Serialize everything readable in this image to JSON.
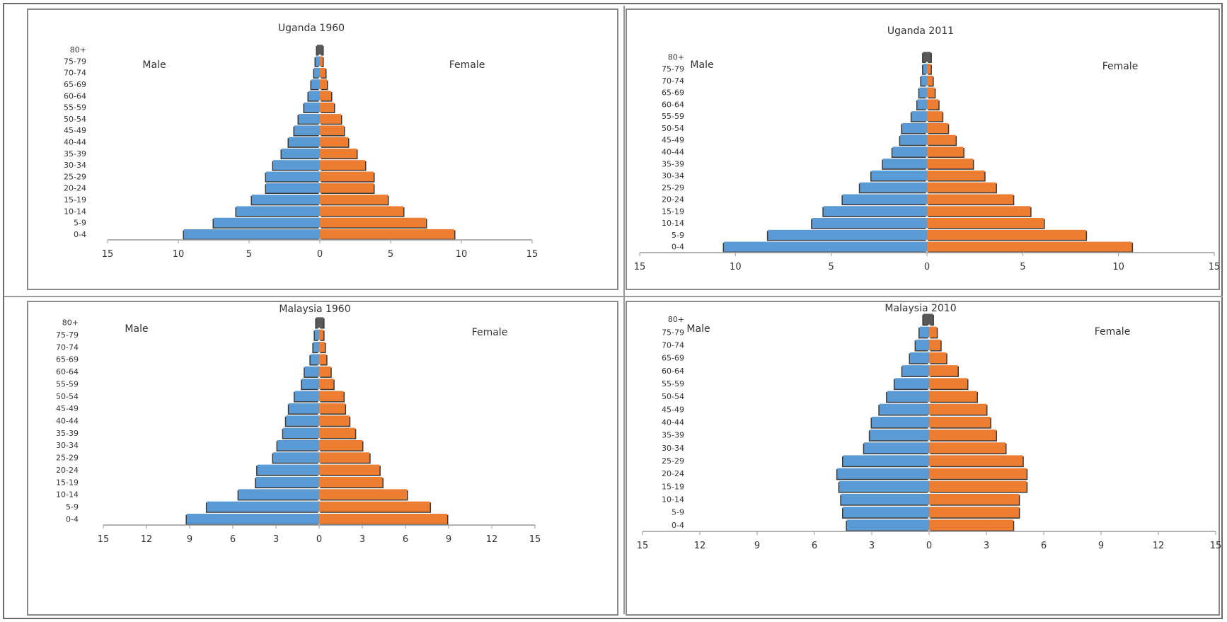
{
  "chart_data": [
    {
      "type": "bar",
      "title": "Uganda 1960",
      "left_label": "Male",
      "right_label": "Female",
      "categories": [
        "0-4",
        "5-9",
        "10-14",
        "15-19",
        "20-24",
        "25-29",
        "30-34",
        "35-39",
        "40-44",
        "45-49",
        "50-54",
        "55-59",
        "60-64",
        "65-69",
        "70-74",
        "75-79",
        "80+"
      ],
      "series": [
        {
          "name": "Male",
          "values": [
            9.6,
            7.5,
            5.9,
            4.8,
            3.8,
            3.8,
            3.3,
            2.7,
            2.2,
            1.8,
            1.5,
            1.1,
            0.8,
            0.6,
            0.4,
            0.3,
            0.2
          ]
        },
        {
          "name": "Female",
          "values": [
            9.5,
            7.5,
            5.9,
            4.8,
            3.8,
            3.8,
            3.2,
            2.6,
            2.0,
            1.7,
            1.5,
            1.0,
            0.8,
            0.5,
            0.4,
            0.2,
            0.2
          ]
        }
      ],
      "xlim": [
        -15,
        15
      ],
      "ticks": [
        -15,
        -10,
        -5,
        0,
        5,
        10,
        15
      ],
      "tick_labels": [
        "15",
        "10",
        "5",
        "0",
        "5",
        "10",
        "15"
      ],
      "colors": {
        "male": "#5b9bd5",
        "female": "#ed7d31",
        "top": "#595959"
      }
    },
    {
      "type": "bar",
      "title": "Uganda 2011",
      "left_label": "Male",
      "right_label": "Female",
      "categories": [
        "0-4",
        "5-9",
        "10-14",
        "15-19",
        "20-24",
        "25-29",
        "30-34",
        "35-39",
        "40-44",
        "45-49",
        "50-54",
        "55-59",
        "60-64",
        "65-69",
        "70-74",
        "75-79",
        "80+"
      ],
      "series": [
        {
          "name": "Male",
          "values": [
            10.6,
            8.3,
            6.0,
            5.4,
            4.4,
            3.5,
            2.9,
            2.3,
            1.8,
            1.4,
            1.3,
            0.8,
            0.5,
            0.4,
            0.3,
            0.2,
            0.2
          ]
        },
        {
          "name": "Female",
          "values": [
            10.7,
            8.3,
            6.1,
            5.4,
            4.5,
            3.6,
            3.0,
            2.4,
            1.9,
            1.5,
            1.1,
            0.8,
            0.6,
            0.4,
            0.3,
            0.2,
            0.2
          ]
        }
      ],
      "xlim": [
        -15,
        15
      ],
      "ticks": [
        -15,
        -10,
        -5,
        0,
        5,
        10,
        15
      ],
      "tick_labels": [
        "15",
        "10",
        "5",
        "0",
        "5",
        "10",
        "15"
      ],
      "colors": {
        "male": "#5b9bd5",
        "female": "#ed7d31",
        "top": "#595959"
      }
    },
    {
      "type": "bar",
      "title": "Malaysia 1960",
      "left_label": "Male",
      "right_label": "Female",
      "categories": [
        "0-4",
        "5-9",
        "10-14",
        "15-19",
        "20-24",
        "25-29",
        "30-34",
        "35-39",
        "40-44",
        "45-49",
        "50-54",
        "55-59",
        "60-64",
        "65-69",
        "70-74",
        "75-79",
        "80+"
      ],
      "series": [
        {
          "name": "Male",
          "values": [
            9.2,
            7.8,
            5.6,
            4.4,
            4.3,
            3.2,
            2.9,
            2.5,
            2.3,
            2.1,
            1.7,
            1.2,
            1.0,
            0.6,
            0.4,
            0.3,
            0.2
          ]
        },
        {
          "name": "Female",
          "values": [
            8.9,
            7.7,
            6.1,
            4.4,
            4.2,
            3.5,
            3.0,
            2.5,
            2.1,
            1.8,
            1.7,
            1.0,
            0.8,
            0.5,
            0.4,
            0.3,
            0.3
          ]
        }
      ],
      "xlim": [
        -15,
        15
      ],
      "ticks": [
        -15,
        -12,
        -9,
        -6,
        -3,
        0,
        3,
        6,
        9,
        12,
        15
      ],
      "tick_labels": [
        "15",
        "12",
        "9",
        "6",
        "3",
        "0",
        "3",
        "6",
        "9",
        "12",
        "15"
      ],
      "colors": {
        "male": "#5b9bd5",
        "female": "#ed7d31",
        "top": "#595959"
      }
    },
    {
      "type": "bar",
      "title": "Malaysia 2010",
      "left_label": "Male",
      "right_label": "Female",
      "categories": [
        "0-4",
        "5-9",
        "10-14",
        "15-19",
        "20-24",
        "25-29",
        "30-34",
        "35-39",
        "40-44",
        "45-49",
        "50-54",
        "55-59",
        "60-64",
        "65-69",
        "70-74",
        "75-79",
        "80+"
      ],
      "series": [
        {
          "name": "Male",
          "values": [
            4.3,
            4.5,
            4.6,
            4.7,
            4.8,
            4.5,
            3.4,
            3.1,
            3.0,
            2.6,
            2.2,
            1.8,
            1.4,
            1.0,
            0.7,
            0.5,
            0.3
          ]
        },
        {
          "name": "Female",
          "values": [
            4.4,
            4.7,
            4.7,
            5.1,
            5.1,
            4.9,
            4.0,
            3.5,
            3.2,
            3.0,
            2.5,
            2.0,
            1.5,
            0.9,
            0.6,
            0.4,
            0.2
          ]
        }
      ],
      "xlim": [
        -15,
        15
      ],
      "ticks": [
        -15,
        -12,
        -9,
        -6,
        -3,
        0,
        3,
        6,
        9,
        12,
        15
      ],
      "tick_labels": [
        "15",
        "12",
        "9",
        "6",
        "3",
        "0",
        "3",
        "6",
        "9",
        "12",
        "15"
      ],
      "colors": {
        "male": "#5b9bd5",
        "female": "#ed7d31",
        "top": "#595959"
      }
    }
  ]
}
